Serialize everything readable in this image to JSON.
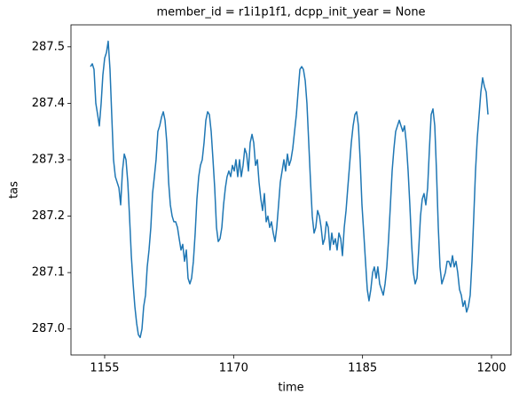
{
  "chart_data": {
    "type": "line",
    "title": "member_id = r1i1p1f1, dcpp_init_year = None",
    "x_label": "time",
    "y_label": "tas",
    "xlim": [
      1151.08,
      1202.27
    ],
    "ylim": [
      286.954,
      287.539
    ],
    "xticks": [
      1155,
      1170,
      1185,
      1200
    ],
    "yticks": [
      {
        "value": 287,
        "label": "287.0"
      },
      287.1,
      287.2,
      287.3,
      287.4,
      287.5
    ],
    "x": [
      1153.35,
      1153.56,
      1153.76,
      1153.97,
      1154.18,
      1154.38,
      1154.59,
      1154.79,
      1155.0,
      1155.21,
      1155.41,
      1155.62,
      1155.82,
      1156.03,
      1156.24,
      1156.45,
      1156.66,
      1156.86,
      1157.07,
      1157.28,
      1157.48,
      1157.69,
      1157.89,
      1158.1,
      1158.31,
      1158.51,
      1158.72,
      1158.92,
      1159.13,
      1159.34,
      1159.54,
      1159.75,
      1159.95,
      1160.16,
      1160.37,
      1160.57,
      1160.78,
      1160.98,
      1161.19,
      1161.4,
      1161.61,
      1161.82,
      1162.02,
      1162.23,
      1162.44,
      1162.64,
      1162.85,
      1163.05,
      1163.26,
      1163.47,
      1163.67,
      1163.88,
      1164.08,
      1164.29,
      1164.5,
      1164.7,
      1164.91,
      1165.11,
      1165.32,
      1165.53,
      1165.73,
      1165.94,
      1166.14,
      1166.35,
      1166.56,
      1166.77,
      1166.98,
      1167.18,
      1167.39,
      1167.6,
      1167.8,
      1168.01,
      1168.21,
      1168.42,
      1168.63,
      1168.83,
      1169.04,
      1169.24,
      1169.45,
      1169.66,
      1169.86,
      1170.07,
      1170.27,
      1170.48,
      1170.69,
      1170.89,
      1171.1,
      1171.3,
      1171.51,
      1171.72,
      1171.93,
      1172.14,
      1172.34,
      1172.55,
      1172.76,
      1172.96,
      1173.17,
      1173.37,
      1173.58,
      1173.79,
      1173.99,
      1174.2,
      1174.4,
      1174.61,
      1174.82,
      1175.02,
      1175.23,
      1175.43,
      1175.64,
      1175.85,
      1176.05,
      1176.26,
      1176.46,
      1176.67,
      1176.88,
      1177.09,
      1177.3,
      1177.5,
      1177.71,
      1177.92,
      1178.12,
      1178.33,
      1178.53,
      1178.74,
      1178.95,
      1179.15,
      1179.36,
      1179.56,
      1179.77,
      1179.98,
      1180.18,
      1180.39,
      1180.59,
      1180.8,
      1181.01,
      1181.21,
      1181.42,
      1181.62,
      1181.83,
      1182.04,
      1182.25,
      1182.46,
      1182.66,
      1182.87,
      1183.08,
      1183.28,
      1183.49,
      1183.69,
      1183.9,
      1184.11,
      1184.31,
      1184.52,
      1184.72,
      1184.93,
      1185.14,
      1185.34,
      1185.55,
      1185.75,
      1185.96,
      1186.17,
      1186.37,
      1186.58,
      1186.78,
      1186.99,
      1187.2,
      1187.41,
      1187.62,
      1187.82,
      1188.03,
      1188.24,
      1188.44,
      1188.65,
      1188.85,
      1189.06,
      1189.27,
      1189.47,
      1189.68,
      1189.88,
      1190.09,
      1190.3,
      1190.5,
      1190.71,
      1190.91,
      1191.12,
      1191.33,
      1191.53,
      1191.74,
      1191.94,
      1192.15,
      1192.36,
      1192.57,
      1192.78,
      1192.98,
      1193.19,
      1193.4,
      1193.6,
      1193.81,
      1194.01,
      1194.22,
      1194.43,
      1194.63,
      1194.84,
      1195.04,
      1195.25,
      1195.46,
      1195.66,
      1195.87,
      1196.07,
      1196.28,
      1196.49,
      1196.69,
      1196.9,
      1197.1,
      1197.31,
      1197.52,
      1197.73,
      1197.94,
      1198.14,
      1198.35,
      1198.56,
      1198.76,
      1198.97,
      1199.17,
      1199.38,
      1199.59
    ],
    "series": [
      {
        "color": "#1f77b4",
        "values": [
          287.465,
          287.47,
          287.46,
          287.4,
          287.38,
          287.36,
          287.4,
          287.45,
          287.48,
          287.49,
          287.51,
          287.46,
          287.38,
          287.3,
          287.27,
          287.26,
          287.25,
          287.22,
          287.28,
          287.31,
          287.3,
          287.26,
          287.2,
          287.13,
          287.08,
          287.04,
          287.01,
          286.99,
          286.985,
          287.0,
          287.04,
          287.06,
          287.11,
          287.14,
          287.18,
          287.24,
          287.27,
          287.3,
          287.35,
          287.36,
          287.375,
          287.385,
          287.37,
          287.33,
          287.26,
          287.22,
          287.2,
          287.19,
          287.19,
          287.18,
          287.16,
          287.14,
          287.15,
          287.12,
          287.14,
          287.09,
          287.08,
          287.09,
          287.12,
          287.17,
          287.23,
          287.27,
          287.29,
          287.3,
          287.33,
          287.37,
          287.385,
          287.38,
          287.35,
          287.3,
          287.25,
          287.18,
          287.155,
          287.16,
          287.18,
          287.22,
          287.25,
          287.27,
          287.28,
          287.27,
          287.29,
          287.28,
          287.3,
          287.27,
          287.3,
          287.27,
          287.29,
          287.32,
          287.31,
          287.28,
          287.33,
          287.345,
          287.33,
          287.29,
          287.3,
          287.26,
          287.23,
          287.21,
          287.24,
          287.19,
          287.2,
          287.18,
          287.19,
          287.17,
          287.155,
          287.18,
          287.22,
          287.26,
          287.28,
          287.3,
          287.28,
          287.31,
          287.29,
          287.3,
          287.32,
          287.35,
          287.38,
          287.42,
          287.46,
          287.465,
          287.46,
          287.44,
          287.4,
          287.33,
          287.26,
          287.2,
          287.17,
          287.18,
          287.21,
          287.2,
          287.18,
          287.15,
          287.16,
          287.19,
          287.18,
          287.14,
          287.17,
          287.15,
          287.16,
          287.14,
          287.17,
          287.16,
          287.13,
          287.18,
          287.21,
          287.25,
          287.29,
          287.33,
          287.36,
          287.38,
          287.385,
          287.36,
          287.3,
          287.22,
          287.17,
          287.12,
          287.07,
          287.05,
          287.07,
          287.1,
          287.11,
          287.09,
          287.11,
          287.08,
          287.07,
          287.06,
          287.08,
          287.11,
          287.16,
          287.22,
          287.28,
          287.32,
          287.35,
          287.36,
          287.37,
          287.36,
          287.35,
          287.36,
          287.33,
          287.28,
          287.22,
          287.15,
          287.1,
          287.08,
          287.09,
          287.14,
          287.2,
          287.23,
          287.24,
          287.22,
          287.25,
          287.32,
          287.38,
          287.39,
          287.36,
          287.28,
          287.18,
          287.11,
          287.08,
          287.09,
          287.1,
          287.12,
          287.12,
          287.11,
          287.13,
          287.11,
          287.12,
          287.1,
          287.07,
          287.06,
          287.04,
          287.05,
          287.03,
          287.04,
          287.06,
          287.12,
          287.2,
          287.28,
          287.34,
          287.38,
          287.42,
          287.445,
          287.43,
          287.42,
          287.38
        ]
      }
    ]
  }
}
